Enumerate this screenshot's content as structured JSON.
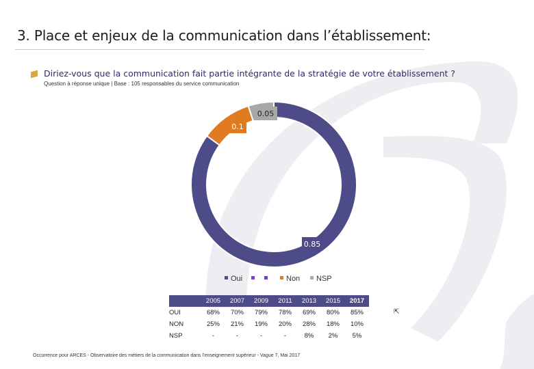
{
  "page": {
    "title": "3. Place et enjeux de la communication dans l’établissement:",
    "question": "Diriez-vous que la communication fait partie intégrante de la stratégie de votre établissement ?",
    "subtitle": "Question à réponse unique | Base : 105 responsables du service communication",
    "footer": "Occurrence pour ARCES - Observatoire des métiers de la communication dans l’enseignement supérieur - Vague 7, Mai 2017"
  },
  "colors": {
    "oui": "#4e4c88",
    "blank1": "#7b3fd0",
    "blank2": "#6a45b8",
    "non": "#e07b22",
    "nsp": "#a8a8a8",
    "marker": "#d9a73a"
  },
  "chart_data": {
    "type": "pie",
    "variant": "donut",
    "labels": [
      "Oui",
      "",
      "",
      "Non",
      "NSP"
    ],
    "values": [
      0.85,
      0,
      0,
      0.1,
      0.05
    ],
    "data_labels": [
      "0.85",
      "",
      "",
      "0.1",
      "0.05"
    ],
    "legend_position": "bottom"
  },
  "legend": [
    "Oui",
    "",
    "",
    "Non",
    "NSP"
  ],
  "table": {
    "years": [
      "2005",
      "2007",
      "2009",
      "2011",
      "2013",
      "2015",
      "2017"
    ],
    "rows": [
      {
        "label": "OUI",
        "values": [
          "68%",
          "70%",
          "79%",
          "78%",
          "69%",
          "80%",
          "85%"
        ]
      },
      {
        "label": "NON",
        "values": [
          "25%",
          "21%",
          "19%",
          "20%",
          "28%",
          "18%",
          "10%"
        ]
      },
      {
        "label": "NSP",
        "values": [
          "-",
          "-",
          "-",
          "-",
          "8%",
          "2%",
          "5%"
        ]
      }
    ]
  },
  "icons": {
    "arrow": "arrow-up-left-icon",
    "marker": "question-marker-icon"
  }
}
